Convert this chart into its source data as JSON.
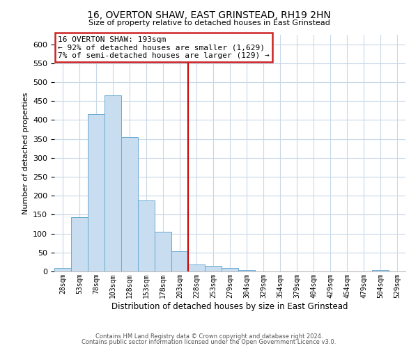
{
  "title": "16, OVERTON SHAW, EAST GRINSTEAD, RH19 2HN",
  "subtitle": "Size of property relative to detached houses in East Grinstead",
  "xlabel": "Distribution of detached houses by size in East Grinstead",
  "ylabel": "Number of detached properties",
  "bar_values": [
    10,
    143,
    415,
    465,
    355,
    188,
    105,
    53,
    18,
    14,
    9,
    3,
    0,
    0,
    0,
    0,
    0,
    0,
    0,
    3,
    0
  ],
  "bin_labels": [
    "28sqm",
    "53sqm",
    "78sqm",
    "103sqm",
    "128sqm",
    "153sqm",
    "178sqm",
    "203sqm",
    "228sqm",
    "253sqm",
    "279sqm",
    "304sqm",
    "329sqm",
    "354sqm",
    "379sqm",
    "404sqm",
    "429sqm",
    "454sqm",
    "479sqm",
    "504sqm",
    "529sqm"
  ],
  "bar_color": "#c8ddf0",
  "bar_edge_color": "#6aaad4",
  "vline_color": "#cc0000",
  "vline_x": 7.5,
  "ylim": [
    0,
    625
  ],
  "yticks": [
    0,
    50,
    100,
    150,
    200,
    250,
    300,
    350,
    400,
    450,
    500,
    550,
    600
  ],
  "annotation_title": "16 OVERTON SHAW: 193sqm",
  "annotation_line1": "← 92% of detached houses are smaller (1,629)",
  "annotation_line2": "7% of semi-detached houses are larger (129) →",
  "ann_edge_color": "#cc2222",
  "ann_face_color": "#ffffff",
  "footer_line1": "Contains HM Land Registry data © Crown copyright and database right 2024.",
  "footer_line2": "Contains public sector information licensed under the Open Government Licence v3.0.",
  "background_color": "#ffffff",
  "grid_color": "#c8d8e8"
}
